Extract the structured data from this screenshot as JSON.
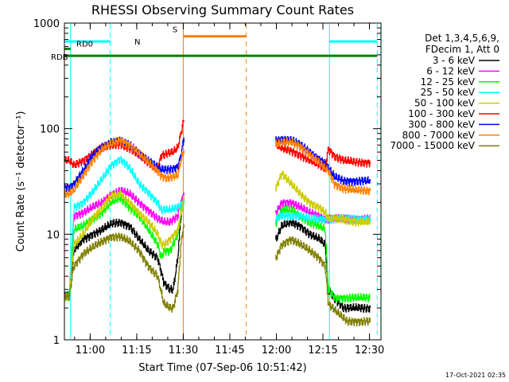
{
  "chart_data": {
    "type": "line",
    "title": "RHESSI Observing Summary Count Rates",
    "xlabel": "Start Time (07-Sep-06 10:51:42)",
    "ylabel": "Count Rate (s⁻¹ detector⁻¹)",
    "xlim_min": [
      0,
      102
    ],
    "y_scale": "log",
    "ylim": [
      1,
      1000
    ],
    "x_ticks": [
      {
        "label": "11:00",
        "min": 8.3
      },
      {
        "label": "11:15",
        "min": 23.3
      },
      {
        "label": "11:30",
        "min": 38.3
      },
      {
        "label": "11:45",
        "min": 53.3
      },
      {
        "label": "12:00",
        "min": 68.3
      },
      {
        "label": "12:15",
        "min": 83.3
      },
      {
        "label": "12:30",
        "min": 98.3
      }
    ],
    "y_ticks": [
      {
        "label": "1",
        "value": 1
      },
      {
        "label": "10",
        "value": 10
      },
      {
        "label": "100",
        "value": 100
      },
      {
        "label": "1000",
        "value": 1000
      }
    ],
    "legend_header": [
      "Det 1,3,4,5,6,9,",
      "FDecim 1, Att 0"
    ],
    "legend_position": "right",
    "gap_min": [
      38.6,
      68.0
    ],
    "series": [
      {
        "name": "3 - 6 keV",
        "color": "#000000",
        "points": [
          [
            0,
            2.6
          ],
          [
            1.5,
            2.6
          ],
          [
            3,
            7
          ],
          [
            6,
            9
          ],
          [
            9,
            10
          ],
          [
            12,
            11
          ],
          [
            15,
            12.5
          ],
          [
            18,
            13
          ],
          [
            21,
            12
          ],
          [
            24,
            9
          ],
          [
            27,
            7
          ],
          [
            30,
            6
          ],
          [
            32,
            3.5
          ],
          [
            34,
            3
          ],
          [
            35,
            3
          ],
          [
            36.5,
            6
          ],
          [
            37.5,
            15
          ],
          [
            38.4,
            22
          ],
          [
            68.2,
            9
          ],
          [
            70,
            12
          ],
          [
            73,
            13
          ],
          [
            76,
            12
          ],
          [
            79,
            10
          ],
          [
            82,
            9
          ],
          [
            84,
            8
          ],
          [
            85,
            3
          ],
          [
            87,
            2.5
          ],
          [
            90,
            2
          ],
          [
            94,
            2
          ],
          [
            98.5,
            2
          ]
        ]
      },
      {
        "name": "6 - 12 keV",
        "color": "#ff00ff",
        "points": [
          [
            0,
            2.6
          ],
          [
            1.5,
            2.6
          ],
          [
            3,
            15
          ],
          [
            6,
            16
          ],
          [
            9,
            18
          ],
          [
            12,
            20
          ],
          [
            15,
            24
          ],
          [
            18,
            26
          ],
          [
            21,
            24
          ],
          [
            24,
            20
          ],
          [
            27,
            17
          ],
          [
            30,
            14
          ],
          [
            32,
            13
          ],
          [
            34,
            13
          ],
          [
            36.5,
            15
          ],
          [
            37.5,
            20
          ],
          [
            38.4,
            24
          ],
          [
            68.2,
            16
          ],
          [
            70,
            20
          ],
          [
            73,
            20
          ],
          [
            76,
            18
          ],
          [
            79,
            16
          ],
          [
            82,
            15
          ],
          [
            84,
            14
          ],
          [
            85,
            14
          ],
          [
            90,
            14
          ],
          [
            94,
            14
          ],
          [
            98.5,
            14
          ]
        ]
      },
      {
        "name": "12 - 25 keV",
        "color": "#00ff00",
        "points": [
          [
            0,
            2.6
          ],
          [
            1.5,
            2.6
          ],
          [
            3,
            11
          ],
          [
            6,
            12
          ],
          [
            9,
            14
          ],
          [
            12,
            16
          ],
          [
            15,
            20
          ],
          [
            18,
            22
          ],
          [
            21,
            18
          ],
          [
            24,
            15
          ],
          [
            27,
            11
          ],
          [
            30,
            8
          ],
          [
            31.2,
            6
          ],
          [
            32,
            7
          ],
          [
            34,
            7
          ],
          [
            36.5,
            10
          ],
          [
            37.5,
            16
          ],
          [
            38.4,
            20
          ],
          [
            68.2,
            13
          ],
          [
            70,
            17
          ],
          [
            73,
            17
          ],
          [
            76,
            15
          ],
          [
            79,
            13
          ],
          [
            82,
            12
          ],
          [
            84,
            11
          ],
          [
            85,
            3
          ],
          [
            87,
            2.5
          ],
          [
            90,
            2.5
          ],
          [
            94,
            2.5
          ],
          [
            98.5,
            2.5
          ]
        ]
      },
      {
        "name": "25 - 50 keV",
        "color": "#00ffff",
        "points": [
          [
            0,
            2.6
          ],
          [
            1.5,
            2.6
          ],
          [
            3,
            18
          ],
          [
            6,
            20
          ],
          [
            9,
            25
          ],
          [
            12,
            33
          ],
          [
            15,
            45
          ],
          [
            18,
            52
          ],
          [
            21,
            42
          ],
          [
            24,
            30
          ],
          [
            27,
            25
          ],
          [
            30,
            20
          ],
          [
            31.2,
            17
          ],
          [
            32,
            17
          ],
          [
            34,
            17
          ],
          [
            36.5,
            18
          ],
          [
            37.5,
            19
          ],
          [
            38.4,
            20
          ],
          [
            68.2,
            14
          ],
          [
            70,
            15
          ],
          [
            73,
            15
          ],
          [
            76,
            15
          ],
          [
            79,
            14
          ],
          [
            82,
            14
          ],
          [
            84,
            14
          ],
          [
            85,
            14
          ],
          [
            90,
            14
          ],
          [
            94,
            14
          ],
          [
            98.5,
            14
          ]
        ]
      },
      {
        "name": "50 - 100 keV",
        "color": "#cccc00",
        "points": [
          [
            0,
            2.6
          ],
          [
            1.5,
            2.6
          ],
          [
            3,
            8
          ],
          [
            6,
            10
          ],
          [
            9,
            14
          ],
          [
            12,
            18
          ],
          [
            15,
            23
          ],
          [
            18,
            24
          ],
          [
            21,
            20
          ],
          [
            24,
            16
          ],
          [
            27,
            13
          ],
          [
            30,
            10
          ],
          [
            31.2,
            8
          ],
          [
            32,
            8
          ],
          [
            34,
            9
          ],
          [
            36.5,
            11
          ],
          [
            37.5,
            16
          ],
          [
            38.4,
            22
          ],
          [
            68.2,
            28
          ],
          [
            70,
            38
          ],
          [
            73,
            30
          ],
          [
            76,
            24
          ],
          [
            79,
            20
          ],
          [
            82,
            18
          ],
          [
            84,
            16
          ],
          [
            85,
            14
          ],
          [
            90,
            14
          ],
          [
            94,
            13
          ],
          [
            98.5,
            13
          ]
        ]
      },
      {
        "name": "100 - 300 keV",
        "color": "#ff0000",
        "points": [
          [
            0,
            50
          ],
          [
            1.5,
            50
          ],
          [
            3,
            45
          ],
          [
            6,
            50
          ],
          [
            9,
            58
          ],
          [
            12,
            65
          ],
          [
            15,
            70
          ],
          [
            18,
            72
          ],
          [
            21,
            65
          ],
          [
            24,
            55
          ],
          [
            27,
            48
          ],
          [
            30,
            42
          ],
          [
            31.2,
            56
          ],
          [
            33,
            58
          ],
          [
            35,
            60
          ],
          [
            36.5,
            66
          ],
          [
            37.5,
            90
          ],
          [
            38.4,
            120
          ],
          [
            68.2,
            70
          ],
          [
            70,
            65
          ],
          [
            73,
            62
          ],
          [
            76,
            56
          ],
          [
            79,
            50
          ],
          [
            82,
            45
          ],
          [
            84,
            42
          ],
          [
            85,
            65
          ],
          [
            87,
            55
          ],
          [
            90,
            50
          ],
          [
            94,
            48
          ],
          [
            98.5,
            48
          ]
        ]
      },
      {
        "name": "300 - 800 keV",
        "color": "#0000ff",
        "points": [
          [
            0,
            28
          ],
          [
            1.5,
            28
          ],
          [
            3,
            30
          ],
          [
            6,
            40
          ],
          [
            9,
            55
          ],
          [
            12,
            68
          ],
          [
            15,
            75
          ],
          [
            18,
            76
          ],
          [
            21,
            70
          ],
          [
            24,
            60
          ],
          [
            27,
            50
          ],
          [
            30,
            43
          ],
          [
            31.2,
            41
          ],
          [
            33,
            41
          ],
          [
            35,
            42
          ],
          [
            36.5,
            44
          ],
          [
            37.5,
            55
          ],
          [
            38.4,
            80
          ],
          [
            68.2,
            78
          ],
          [
            70,
            80
          ],
          [
            73,
            78
          ],
          [
            76,
            70
          ],
          [
            79,
            60
          ],
          [
            82,
            52
          ],
          [
            84,
            47
          ],
          [
            85,
            42
          ],
          [
            87,
            35
          ],
          [
            90,
            32
          ],
          [
            94,
            32
          ],
          [
            98.5,
            32
          ]
        ]
      },
      {
        "name": "800 - 7000 keV",
        "color": "#ff8000",
        "points": [
          [
            0,
            24
          ],
          [
            1.5,
            24
          ],
          [
            3,
            26
          ],
          [
            6,
            36
          ],
          [
            9,
            50
          ],
          [
            12,
            64
          ],
          [
            15,
            72
          ],
          [
            18,
            78
          ],
          [
            21,
            70
          ],
          [
            24,
            58
          ],
          [
            27,
            48
          ],
          [
            30,
            40
          ],
          [
            31.2,
            36
          ],
          [
            33,
            34
          ],
          [
            35,
            35
          ],
          [
            36.5,
            36
          ],
          [
            37.5,
            50
          ],
          [
            38.4,
            62
          ],
          [
            68.2,
            72
          ],
          [
            70,
            74
          ],
          [
            73,
            75
          ],
          [
            76,
            68
          ],
          [
            79,
            57
          ],
          [
            82,
            48
          ],
          [
            84,
            42
          ],
          [
            85,
            40
          ],
          [
            87,
            30
          ],
          [
            90,
            27
          ],
          [
            94,
            26
          ],
          [
            98.5,
            26
          ]
        ]
      },
      {
        "name": "7000 - 15000 keV",
        "color": "#808000",
        "points": [
          [
            0,
            2.6
          ],
          [
            1.5,
            2.6
          ],
          [
            3,
            5
          ],
          [
            6,
            6.5
          ],
          [
            9,
            7.5
          ],
          [
            12,
            8.5
          ],
          [
            15,
            9.5
          ],
          [
            18,
            9.5
          ],
          [
            21,
            8.5
          ],
          [
            24,
            7
          ],
          [
            27,
            5
          ],
          [
            30,
            4
          ],
          [
            32,
            2.2
          ],
          [
            34,
            2
          ],
          [
            35,
            2
          ],
          [
            36.5,
            3
          ],
          [
            37.5,
            8
          ],
          [
            38.4,
            12
          ],
          [
            68.2,
            6
          ],
          [
            70,
            8
          ],
          [
            73,
            9
          ],
          [
            76,
            8
          ],
          [
            79,
            7
          ],
          [
            82,
            6
          ],
          [
            84,
            5
          ],
          [
            85,
            2.2
          ],
          [
            88,
            1.8
          ],
          [
            91,
            1.5
          ],
          [
            94,
            1.5
          ],
          [
            98.5,
            1.5
          ]
        ]
      }
    ],
    "flag_bars": [
      {
        "label": "N",
        "color": "#00ffff",
        "level": 670,
        "segments": [
          [
            0,
            14.8
          ],
          [
            85.4,
            100.8
          ]
        ]
      },
      {
        "label": "S",
        "color": "#ff8000",
        "level": 750,
        "segments": [
          [
            38.4,
            58.6
          ]
        ]
      },
      {
        "label": "RD0",
        "color": "#008000",
        "level": 570,
        "segments": [
          [
            0,
            2
          ]
        ]
      },
      {
        "label": "RDB",
        "color": "#008000",
        "level": 490,
        "segments": [
          [
            0,
            30
          ],
          [
            30,
            58.6
          ],
          [
            58.6,
            70.3
          ],
          [
            70.3,
            100.8
          ]
        ]
      }
    ],
    "vlines": [
      {
        "min": 2.0,
        "color": "#00ffff",
        "style": "solid"
      },
      {
        "min": 14.8,
        "color": "#00ffff",
        "style": "dashed"
      },
      {
        "min": 38.3,
        "color": "#ff8000",
        "style": "solid"
      },
      {
        "min": 58.6,
        "color": "#ff8000",
        "style": "dashed"
      },
      {
        "min": 85.4,
        "color": "#00ffff",
        "style": "solid"
      },
      {
        "min": 100.8,
        "color": "#00ffff",
        "style": "dashed"
      }
    ]
  },
  "footer_timestamp": "17-Oct-2021 02:35"
}
